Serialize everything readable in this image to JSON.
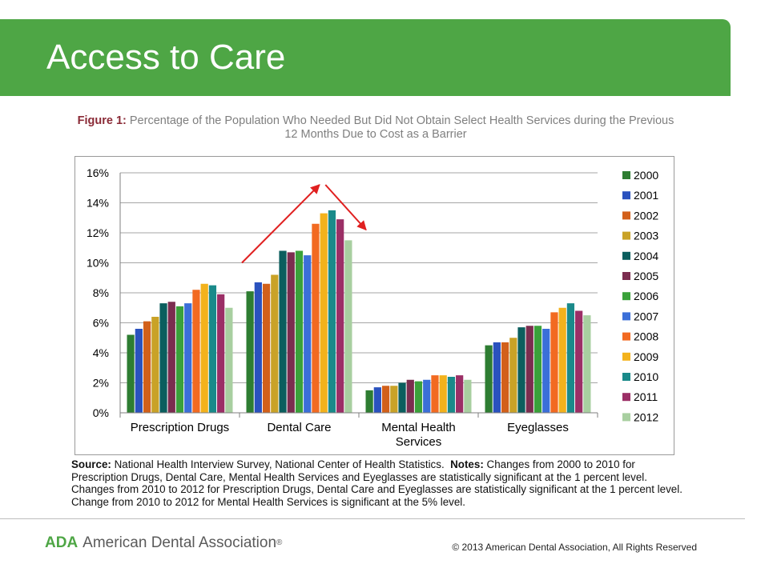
{
  "slide": {
    "title": "Access to Care"
  },
  "figure": {
    "label": "Figure 1:",
    "caption": "Percentage of the Population Who Needed But Did Not Obtain Select Health Services during the Previous 12 Months Due to Cost as a Barrier"
  },
  "chart_data": {
    "type": "bar",
    "categories": [
      "Prescription Drugs",
      "Dental Care",
      "Mental Health Services",
      "Eyeglasses"
    ],
    "category_labels": [
      [
        "Prescription Drugs"
      ],
      [
        "Dental Care"
      ],
      [
        "Mental Health",
        "Services"
      ],
      [
        "Eyeglasses"
      ]
    ],
    "ylim": [
      0,
      16
    ],
    "yticks": [
      0,
      2,
      4,
      6,
      8,
      10,
      12,
      14,
      16
    ],
    "ytick_labels": [
      "0%",
      "2%",
      "4%",
      "6%",
      "8%",
      "10%",
      "12%",
      "14%",
      "16%"
    ],
    "grid": true,
    "legend_position": "right",
    "xlabel": "",
    "ylabel": "",
    "series": [
      {
        "name": "2000",
        "color": "#2e7d32",
        "values": [
          5.2,
          8.1,
          1.5,
          4.5
        ]
      },
      {
        "name": "2001",
        "color": "#2a52be",
        "values": [
          5.6,
          8.7,
          1.7,
          4.7
        ]
      },
      {
        "name": "2002",
        "color": "#d2601a",
        "values": [
          6.1,
          8.6,
          1.8,
          4.7
        ]
      },
      {
        "name": "2003",
        "color": "#c9a227",
        "values": [
          6.4,
          9.2,
          1.8,
          5.0
        ]
      },
      {
        "name": "2004",
        "color": "#0b5e5e",
        "values": [
          7.3,
          10.8,
          2.0,
          5.7
        ]
      },
      {
        "name": "2005",
        "color": "#7b2d4f",
        "values": [
          7.4,
          10.7,
          2.2,
          5.8
        ]
      },
      {
        "name": "2006",
        "color": "#3aa13a",
        "values": [
          7.1,
          10.8,
          2.1,
          5.8
        ]
      },
      {
        "name": "2007",
        "color": "#3b6fd8",
        "values": [
          7.3,
          10.5,
          2.2,
          5.6
        ]
      },
      {
        "name": "2008",
        "color": "#f26a21",
        "values": [
          8.2,
          12.6,
          2.5,
          6.7
        ]
      },
      {
        "name": "2009",
        "color": "#f3b21c",
        "values": [
          8.6,
          13.3,
          2.5,
          7.0
        ]
      },
      {
        "name": "2010",
        "color": "#1a8a8a",
        "values": [
          8.5,
          13.5,
          2.4,
          7.3
        ]
      },
      {
        "name": "2011",
        "color": "#9b2f66",
        "values": [
          7.9,
          12.9,
          2.5,
          6.8
        ]
      },
      {
        "name": "2012",
        "color": "#a8cfa0",
        "values": [
          7.0,
          11.5,
          2.2,
          6.5
        ]
      }
    ],
    "annotations": [
      {
        "type": "arrow",
        "color": "#e02020",
        "from": {
          "category": "Prescription Drugs",
          "y": 10.0
        },
        "to": {
          "category": "Dental Care",
          "y": 15.2
        }
      },
      {
        "type": "arrow",
        "color": "#e02020",
        "from": {
          "category": "Dental Care",
          "y": 15.2
        },
        "to": {
          "category": "Mental Health Services",
          "y": 12.2
        }
      }
    ]
  },
  "notes": {
    "source_label": "Source:",
    "source_text": "National Health Interview Survey, National Center of Health Statistics.",
    "notes_label": "Notes:",
    "notes_text": "Changes from 2000 to 2010 for Prescription Drugs, Dental Care, Mental Health Services and Eyeglasses are statistically significant at the 1 percent level.  Changes from 2010 to 2012 for Prescription Drugs, Dental Care and Eyeglasses are statistically significant at the 1 percent level.  Change from 2010 to 2012 for Mental Health Services is significant at the 5% level."
  },
  "footer": {
    "logo_abbrev": "ADA",
    "logo_name": "American Dental Association",
    "logo_reg": "®",
    "copyright": "© 2013 American Dental Association,  All Rights Reserved"
  },
  "colors": {
    "header_green": "#4ea645",
    "caption_label": "#8a2a36",
    "arrow_red": "#e02020"
  }
}
